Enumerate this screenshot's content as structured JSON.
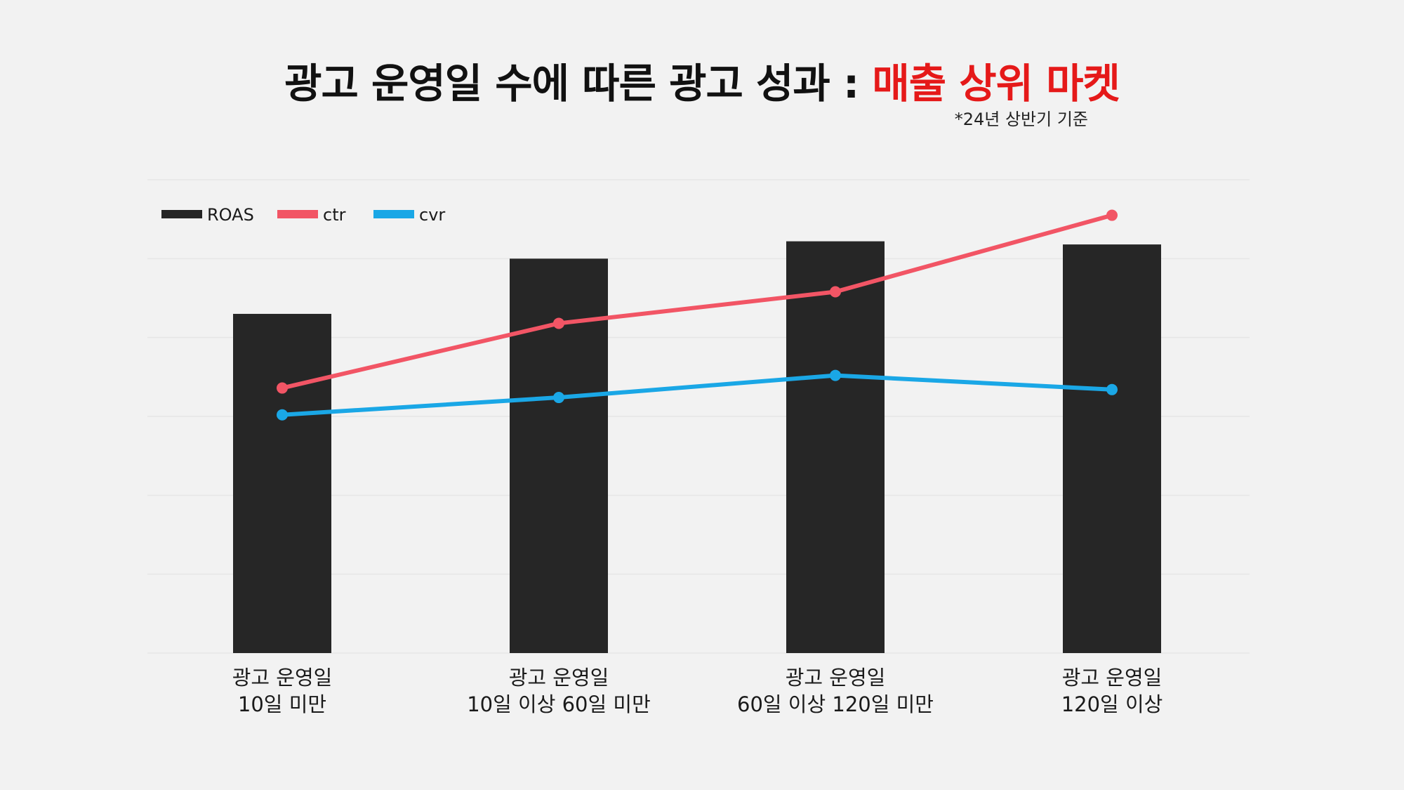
{
  "title": {
    "main": "광고 운영일 수에 따른 광고 성과 : ",
    "highlight": "매출 상위 마켓",
    "note": "*24년 상반기 기준"
  },
  "colors": {
    "background": "#f2f2f2",
    "roas": "#262626",
    "ctr": "#f25565",
    "cvr": "#1aa7e6",
    "highlight": "#e51919",
    "grid": "#e6e6e6"
  },
  "chart_data": {
    "type": "bar",
    "title": "광고 운영일 수에 따른 광고 성과 : 매출 상위 마켓",
    "xlabel": "",
    "ylabel": "",
    "ylim": [
      0,
      6
    ],
    "grid": true,
    "legend_position": "top-left",
    "categories": [
      [
        "광고 운영일",
        "10일 미만"
      ],
      [
        "광고 운영일",
        "10일 이상 60일 미만"
      ],
      [
        "광고 운영일",
        "60일 이상 120일 미만"
      ],
      [
        "광고 운영일",
        "120일 이상"
      ]
    ],
    "series": [
      {
        "name": "ROAS",
        "type": "bar",
        "values": [
          4.3,
          5.0,
          5.22,
          5.18
        ]
      },
      {
        "name": "ctr",
        "type": "line",
        "values": [
          3.36,
          4.18,
          4.58,
          5.55
        ]
      },
      {
        "name": "cvr",
        "type": "line",
        "values": [
          3.02,
          3.24,
          3.52,
          3.34
        ]
      }
    ]
  }
}
